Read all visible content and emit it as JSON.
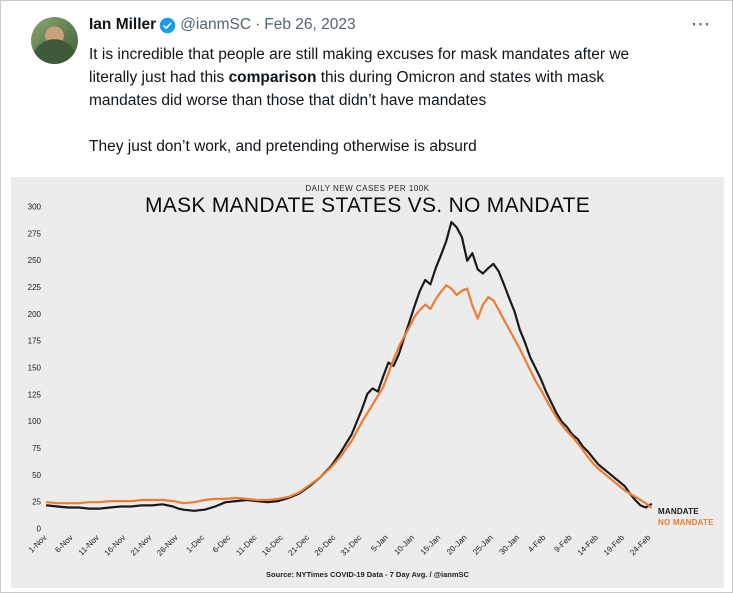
{
  "tweet": {
    "author": "Ian Miller",
    "handle": "@ianmSC",
    "separator": "·",
    "date": "Feb 26, 2023",
    "verified_color": "#1d9bf0",
    "more_icon_glyph": "⋯",
    "body": {
      "p1_before": "It is incredible that people are still making excuses for mask mandates after we literally just had this ",
      "p1_bold": "comparison",
      "p1_after": " this during Omicron and states with mask mandates did worse than those that didn’t have mandates",
      "p2": "They just don’t work, and pretending otherwise is absurd"
    }
  },
  "chart_data": {
    "type": "line",
    "subtitle": "DAILY NEW CASES PER 100K",
    "title": "MASK MANDATE STATES VS. NO MANDATE",
    "source": "Source: NYTimes COVID-19 Data - 7 Day Avg. / @ianmSC",
    "grid": false,
    "legend_position": "right-end-labels",
    "ylim": [
      0,
      300
    ],
    "y_ticks": [
      0,
      25,
      50,
      75,
      100,
      125,
      150,
      175,
      200,
      225,
      250,
      275,
      300
    ],
    "x_max": 115,
    "x_tick_labels": [
      "1-Nov",
      "6-Nov",
      "11-Nov",
      "16-Nov",
      "21-Nov",
      "26-Nov",
      "1-Dec",
      "6-Dec",
      "11-Dec",
      "16-Dec",
      "21-Dec",
      "26-Dec",
      "31-Dec",
      "5-Jan",
      "10-Jan",
      "15-Jan",
      "20-Jan",
      "25-Jan",
      "30-Jan",
      "4-Feb",
      "9-Feb",
      "14-Feb",
      "19-Feb",
      "24-Feb"
    ],
    "x_tick_positions": [
      0,
      5,
      10,
      15,
      20,
      25,
      30,
      35,
      40,
      45,
      50,
      55,
      60,
      65,
      70,
      75,
      80,
      85,
      90,
      95,
      100,
      105,
      110,
      115
    ],
    "series": [
      {
        "name": "MANDATE",
        "color": "#1a1a1a",
        "points": [
          [
            0,
            22
          ],
          [
            2,
            21
          ],
          [
            4,
            20
          ],
          [
            6,
            20
          ],
          [
            8,
            19
          ],
          [
            10,
            19
          ],
          [
            12,
            20
          ],
          [
            14,
            21
          ],
          [
            16,
            21
          ],
          [
            18,
            22
          ],
          [
            20,
            22
          ],
          [
            22,
            23
          ],
          [
            24,
            21
          ],
          [
            25,
            19
          ],
          [
            26,
            18
          ],
          [
            28,
            17
          ],
          [
            30,
            18
          ],
          [
            32,
            21
          ],
          [
            34,
            25
          ],
          [
            36,
            26
          ],
          [
            38,
            27
          ],
          [
            40,
            26
          ],
          [
            42,
            25
          ],
          [
            44,
            26
          ],
          [
            46,
            29
          ],
          [
            48,
            33
          ],
          [
            50,
            40
          ],
          [
            52,
            48
          ],
          [
            54,
            58
          ],
          [
            56,
            72
          ],
          [
            58,
            88
          ],
          [
            60,
            112
          ],
          [
            61,
            126
          ],
          [
            62,
            131
          ],
          [
            63,
            128
          ],
          [
            64,
            142
          ],
          [
            65,
            155
          ],
          [
            66,
            152
          ],
          [
            67,
            163
          ],
          [
            68,
            178
          ],
          [
            69,
            193
          ],
          [
            70,
            208
          ],
          [
            71,
            222
          ],
          [
            72,
            232
          ],
          [
            73,
            228
          ],
          [
            74,
            243
          ],
          [
            75,
            255
          ],
          [
            76,
            268
          ],
          [
            77,
            286
          ],
          [
            78,
            281
          ],
          [
            79,
            272
          ],
          [
            80,
            250
          ],
          [
            81,
            257
          ],
          [
            82,
            242
          ],
          [
            83,
            238
          ],
          [
            84,
            243
          ],
          [
            85,
            247
          ],
          [
            86,
            240
          ],
          [
            87,
            228
          ],
          [
            88,
            215
          ],
          [
            89,
            203
          ],
          [
            90,
            186
          ],
          [
            91,
            174
          ],
          [
            92,
            160
          ],
          [
            93,
            150
          ],
          [
            94,
            140
          ],
          [
            95,
            128
          ],
          [
            96,
            118
          ],
          [
            97,
            108
          ],
          [
            98,
            100
          ],
          [
            99,
            95
          ],
          [
            100,
            88
          ],
          [
            101,
            84
          ],
          [
            102,
            77
          ],
          [
            103,
            72
          ],
          [
            104,
            66
          ],
          [
            105,
            60
          ],
          [
            106,
            56
          ],
          [
            107,
            52
          ],
          [
            108,
            48
          ],
          [
            109,
            44
          ],
          [
            110,
            40
          ],
          [
            111,
            33
          ],
          [
            112,
            27
          ],
          [
            113,
            22
          ],
          [
            114,
            20
          ],
          [
            115,
            23
          ]
        ]
      },
      {
        "name": "NO MANDATE",
        "color": "#ED7D31",
        "points": [
          [
            0,
            25
          ],
          [
            2,
            24
          ],
          [
            4,
            24
          ],
          [
            6,
            24
          ],
          [
            8,
            25
          ],
          [
            10,
            25
          ],
          [
            12,
            26
          ],
          [
            14,
            26
          ],
          [
            16,
            26
          ],
          [
            18,
            27
          ],
          [
            20,
            27
          ],
          [
            22,
            27
          ],
          [
            24,
            26
          ],
          [
            26,
            24
          ],
          [
            28,
            25
          ],
          [
            30,
            27
          ],
          [
            32,
            28
          ],
          [
            34,
            28
          ],
          [
            36,
            29
          ],
          [
            38,
            28
          ],
          [
            40,
            27
          ],
          [
            42,
            27
          ],
          [
            44,
            28
          ],
          [
            46,
            30
          ],
          [
            48,
            34
          ],
          [
            50,
            41
          ],
          [
            52,
            48
          ],
          [
            54,
            57
          ],
          [
            56,
            68
          ],
          [
            58,
            82
          ],
          [
            60,
            100
          ],
          [
            62,
            116
          ],
          [
            64,
            132
          ],
          [
            65,
            145
          ],
          [
            66,
            158
          ],
          [
            67,
            170
          ],
          [
            68,
            179
          ],
          [
            69,
            188
          ],
          [
            70,
            198
          ],
          [
            71,
            204
          ],
          [
            72,
            209
          ],
          [
            73,
            205
          ],
          [
            74,
            214
          ],
          [
            75,
            221
          ],
          [
            76,
            227
          ],
          [
            77,
            224
          ],
          [
            78,
            218
          ],
          [
            79,
            222
          ],
          [
            80,
            224
          ],
          [
            81,
            208
          ],
          [
            82,
            196
          ],
          [
            83,
            209
          ],
          [
            84,
            216
          ],
          [
            85,
            213
          ],
          [
            86,
            204
          ],
          [
            87,
            195
          ],
          [
            88,
            186
          ],
          [
            89,
            177
          ],
          [
            90,
            168
          ],
          [
            91,
            158
          ],
          [
            92,
            148
          ],
          [
            93,
            138
          ],
          [
            94,
            130
          ],
          [
            95,
            121
          ],
          [
            96,
            112
          ],
          [
            97,
            104
          ],
          [
            98,
            97
          ],
          [
            99,
            91
          ],
          [
            100,
            86
          ],
          [
            101,
            80
          ],
          [
            102,
            74
          ],
          [
            103,
            67
          ],
          [
            104,
            61
          ],
          [
            105,
            56
          ],
          [
            106,
            52
          ],
          [
            107,
            48
          ],
          [
            108,
            44
          ],
          [
            109,
            40
          ],
          [
            110,
            36
          ],
          [
            111,
            33
          ],
          [
            112,
            30
          ],
          [
            113,
            27
          ],
          [
            114,
            24
          ],
          [
            115,
            20
          ]
        ]
      }
    ]
  }
}
